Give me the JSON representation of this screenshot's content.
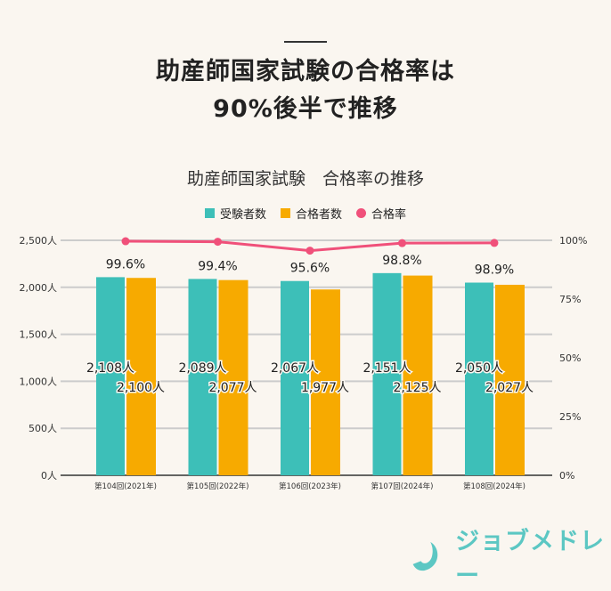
{
  "headline": {
    "line1": "助産師国家試験の合格率は",
    "line2": "90%後半で推移"
  },
  "chart_data": {
    "type": "bar+line",
    "title": "助産師国家試験　合格率の推移",
    "categories": [
      "第104回(2021年)",
      "第105回(2022年)",
      "第106回(2023年)",
      "第107回(2024年)",
      "第108回(2024年)"
    ],
    "series": [
      {
        "name": "受験者数",
        "type": "bar",
        "axis": "left",
        "color": "#3dbfb8",
        "values": [
          2108,
          2089,
          2067,
          2151,
          2050
        ],
        "labels": [
          "2,108人",
          "2,089人",
          "2,067人",
          "2,151人",
          "2,050人"
        ]
      },
      {
        "name": "合格者数",
        "type": "bar",
        "axis": "left",
        "color": "#f7aa00",
        "values": [
          2100,
          2077,
          1977,
          2125,
          2027
        ],
        "labels": [
          "2,100人",
          "2,077人",
          "1,977人",
          "2,125人",
          "2,027人"
        ]
      },
      {
        "name": "合格率",
        "type": "line",
        "axis": "right",
        "color": "#f0507a",
        "values": [
          99.6,
          99.4,
          95.6,
          98.8,
          98.9
        ],
        "labels": [
          "99.6%",
          "99.4%",
          "95.6%",
          "98.8%",
          "98.9%"
        ]
      }
    ],
    "left_axis": {
      "ylim": [
        0,
        2500
      ],
      "ticks": [
        "0人",
        "500人",
        "1,000人",
        "1,500人",
        "2,000人",
        "2,500人"
      ]
    },
    "right_axis": {
      "ylim": [
        0,
        100
      ],
      "ticks": [
        "0%",
        "25%",
        "50%",
        "75%",
        "100%"
      ]
    },
    "grid": true,
    "legend": "top"
  },
  "logo": {
    "text": "ジョブメドレー",
    "color": "#5cc7c3"
  }
}
